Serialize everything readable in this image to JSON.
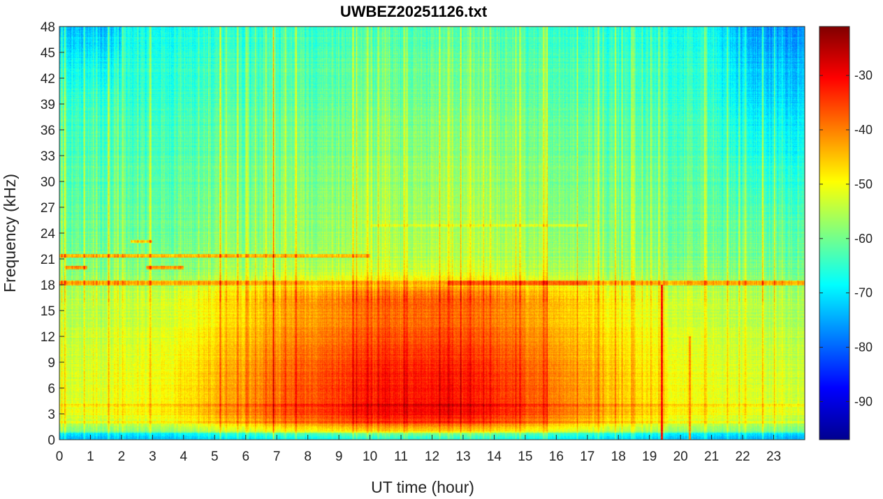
{
  "chart_data": {
    "type": "heatmap",
    "title": "UWBEZ20251126.txt",
    "xlabel": "UT time (hour)",
    "ylabel": "Frequency (kHz)",
    "xlim": [
      0,
      24
    ],
    "ylim": [
      0,
      48
    ],
    "xticks": [
      "0",
      "1",
      "2",
      "3",
      "4",
      "5",
      "6",
      "7",
      "8",
      "9",
      "10",
      "11",
      "12",
      "13",
      "14",
      "15",
      "16",
      "17",
      "18",
      "19",
      "20",
      "21",
      "22",
      "23"
    ],
    "yticks": [
      "0",
      "3",
      "6",
      "9",
      "12",
      "15",
      "18",
      "21",
      "24",
      "27",
      "30",
      "33",
      "36",
      "39",
      "42",
      "45",
      "48"
    ],
    "colorbar": {
      "colormap": "jet",
      "range": [
        -97,
        -21
      ],
      "ticks": [
        "-90",
        "-80",
        "-70",
        "-60",
        "-50",
        "-40",
        "-30"
      ]
    },
    "features": {
      "hiss_band_khz": [
        3,
        16
      ],
      "peak_intensity_hours": [
        9.5,
        15.5
      ],
      "narrowband_lines_khz": [
        18.2,
        21.4,
        20.0,
        23.0,
        24.9
      ],
      "sferic_hours": [
        19.4,
        20.3
      ],
      "low_level_upper_band_hours": [
        21,
        24
      ]
    }
  }
}
